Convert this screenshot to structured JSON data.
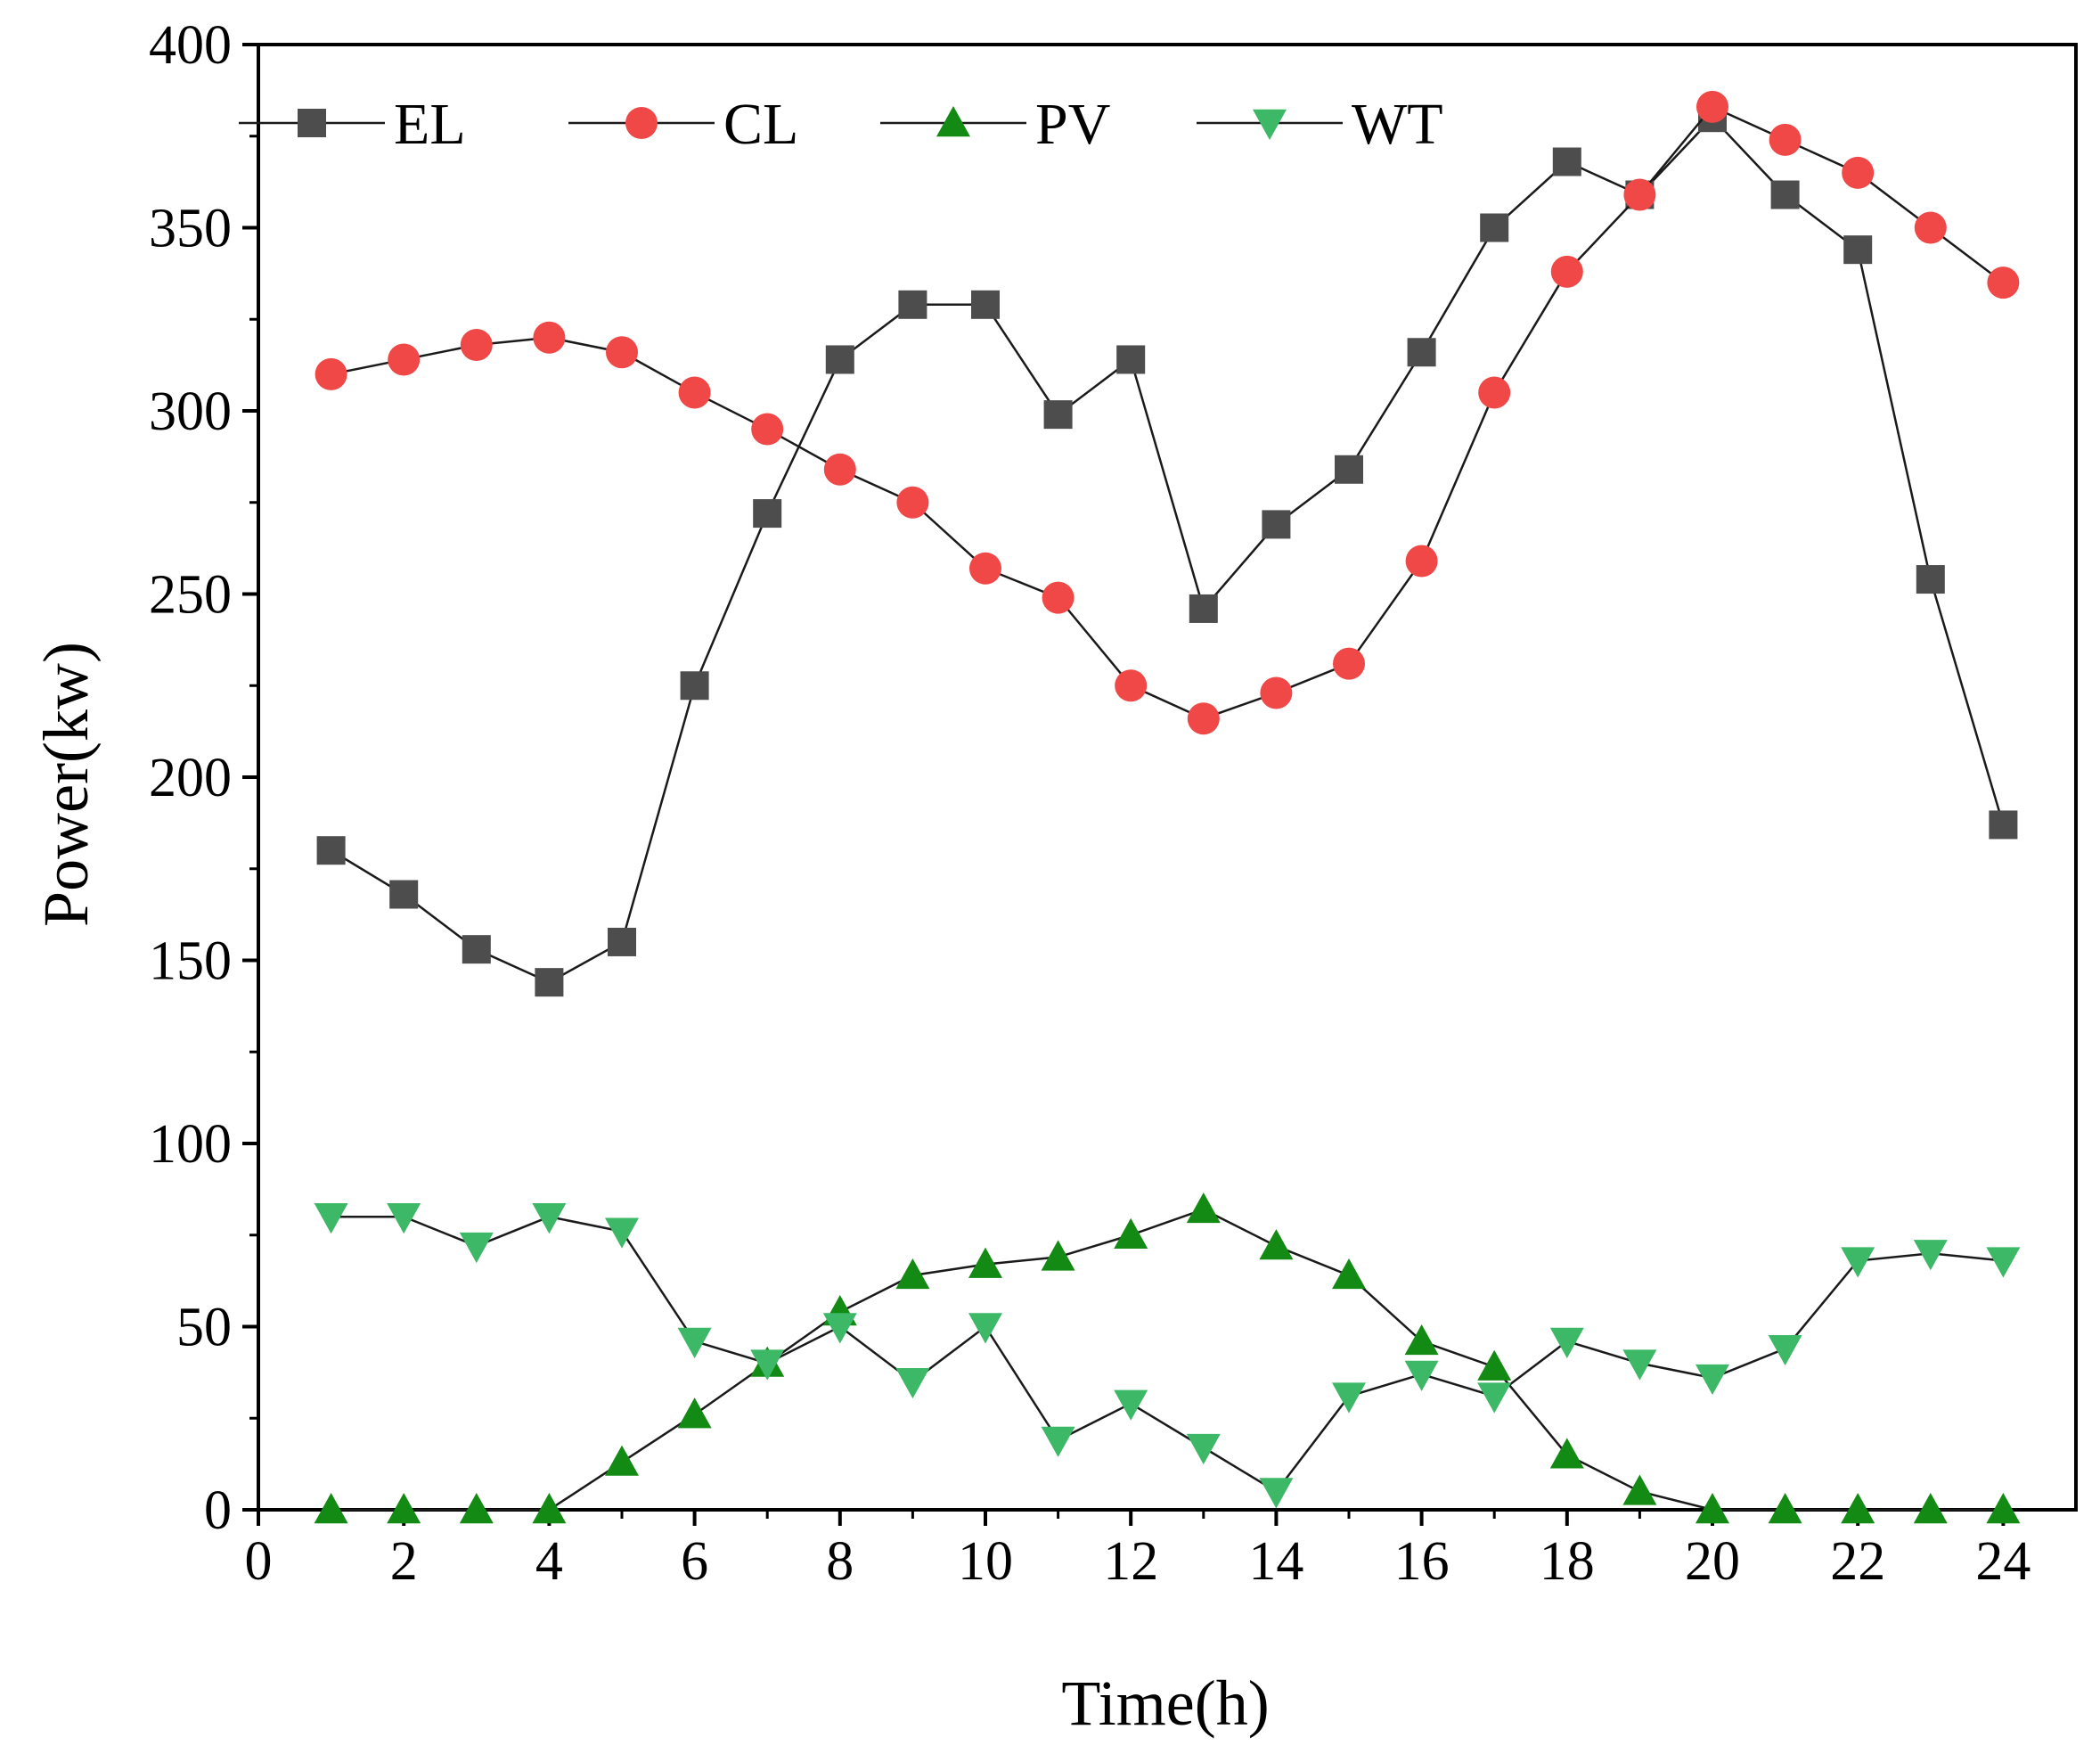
{
  "chart_data": {
    "type": "line",
    "title": "",
    "xlabel": "Time(h)",
    "ylabel": "Power(kw)",
    "xlim": [
      0,
      25
    ],
    "ylim": [
      0,
      400
    ],
    "xticks": [
      0,
      2,
      4,
      6,
      8,
      10,
      12,
      14,
      16,
      18,
      20,
      22,
      24
    ],
    "yticks": [
      0,
      50,
      100,
      150,
      200,
      250,
      300,
      350,
      400
    ],
    "grid": false,
    "legend_position": "top-left",
    "x": [
      1,
      2,
      3,
      4,
      5,
      6,
      7,
      8,
      9,
      10,
      11,
      12,
      13,
      14,
      15,
      16,
      17,
      18,
      19,
      20,
      21,
      22,
      23,
      24
    ],
    "series": [
      {
        "name": "EL",
        "marker": "square",
        "color": "#4d4d4d",
        "values": [
          180,
          168,
          153,
          144,
          155,
          225,
          272,
          314,
          329,
          329,
          299,
          314,
          246,
          269,
          284,
          316,
          350,
          368,
          359,
          380,
          359,
          344,
          254,
          187
        ]
      },
      {
        "name": "CL",
        "marker": "circle",
        "color": "#f04747",
        "values": [
          310,
          314,
          318,
          320,
          316,
          305,
          295,
          284,
          275,
          257,
          249,
          225,
          216,
          223,
          231,
          259,
          305,
          338,
          359,
          383,
          374,
          365,
          350,
          335
        ]
      },
      {
        "name": "PV",
        "marker": "triangle-up",
        "color": "#138a13",
        "values": [
          0,
          0,
          0,
          0,
          13,
          26,
          40,
          54,
          64,
          67,
          69,
          75,
          82,
          72,
          64,
          46,
          39,
          15,
          5,
          0,
          0,
          0,
          0,
          0
        ]
      },
      {
        "name": "WT",
        "marker": "triangle-down",
        "color": "#3cb867",
        "values": [
          80,
          80,
          72,
          80,
          76,
          46,
          40,
          50,
          35,
          50,
          19,
          29,
          17,
          5,
          31,
          37,
          31,
          46,
          40,
          36,
          44,
          68,
          70,
          68
        ]
      }
    ]
  }
}
